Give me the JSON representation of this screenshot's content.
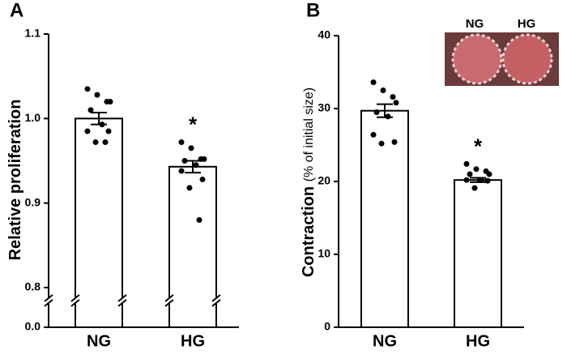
{
  "chart_data": [
    {
      "type": "bar",
      "label": "A",
      "ylabel": "Relative proliferation",
      "categories": [
        "NG",
        "HG"
      ],
      "values": [
        1.0,
        0.943
      ],
      "errors": [
        0.007,
        0.007
      ],
      "points": [
        [
          1.035,
          1.028,
          1.02,
          1.02,
          1.01,
          0.993,
          0.985,
          0.985,
          0.972,
          0.972
        ],
        [
          0.972,
          0.965,
          0.952,
          0.952,
          0.95,
          0.945,
          0.938,
          0.928,
          0.918,
          0.88
        ]
      ],
      "annotation": "*",
      "color": "#ffffff",
      "ylim": [
        0,
        1.1
      ],
      "ybreak": [
        0,
        0.8
      ],
      "yticks": [
        {
          "value": 0,
          "label": "0.0"
        },
        0.8,
        0.9,
        {
          "value": 1,
          "label": "1.0"
        },
        1.1
      ]
    },
    {
      "type": "bar",
      "label": "B",
      "ylabel": "Contraction",
      "ylabel_unit": "(% of initial size)",
      "categories": [
        "NG",
        "HG"
      ],
      "values": [
        29.7,
        20.2
      ],
      "errors": [
        0.9,
        0.3
      ],
      "points": [
        [
          33.6,
          32.5,
          31.6,
          30.8,
          29.5,
          28.9,
          26.4,
          25.4,
          25.2
        ],
        [
          22.4,
          21.7,
          21.4,
          21.0,
          21.0,
          20.2,
          20.2,
          20.1,
          19.1
        ]
      ],
      "annotation": "*",
      "color": "#ffffff",
      "inset_labels": [
        "NG",
        "HG"
      ],
      "ylim": [
        0,
        40
      ],
      "yticks": [
        0,
        10,
        20,
        30,
        40
      ]
    }
  ]
}
